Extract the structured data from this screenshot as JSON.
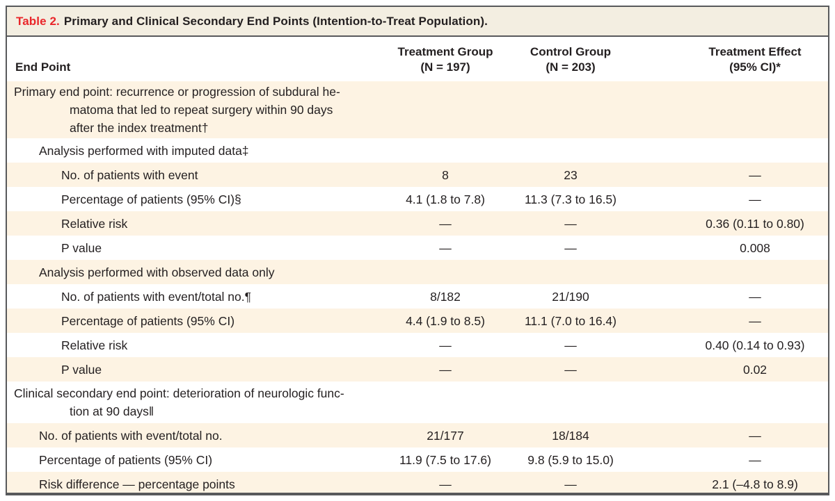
{
  "title": {
    "number": "Table 2.",
    "caption": "Primary and Clinical Secondary End Points (Intention-to-Treat Population)."
  },
  "columns": {
    "endpoint": "End Point",
    "treatment": "Treatment Group\n(N = 197)",
    "control": "Control Group\n(N = 203)",
    "effect": "Treatment Effect\n(95% CI)*"
  },
  "rows": [
    {
      "label": "Primary end point: recurrence or progression of subdural he-\nmatoma that led to repeat surgery within 90 days\nafter the index treatment†",
      "indent": 0,
      "tall": true,
      "treatment": "",
      "control": "",
      "effect": ""
    },
    {
      "label": "Analysis performed with imputed data‡",
      "indent": 1,
      "tall": false,
      "treatment": "",
      "control": "",
      "effect": ""
    },
    {
      "label": "No. of patients with event",
      "indent": 2,
      "tall": false,
      "treatment": "8",
      "control": "23",
      "effect": "—"
    },
    {
      "label": "Percentage of patients (95% CI)§",
      "indent": 2,
      "tall": false,
      "treatment": "4.1 (1.8 to 7.8)",
      "control": "11.3 (7.3 to 16.5)",
      "effect": "—"
    },
    {
      "label": "Relative risk",
      "indent": 2,
      "tall": false,
      "treatment": "—",
      "control": "—",
      "effect": "0.36 (0.11 to 0.80)"
    },
    {
      "label": "P value",
      "indent": 2,
      "tall": false,
      "treatment": "—",
      "control": "—",
      "effect": "0.008"
    },
    {
      "label": "Analysis performed with observed data only",
      "indent": 1,
      "tall": false,
      "treatment": "",
      "control": "",
      "effect": ""
    },
    {
      "label": "No. of patients with event/total no.¶",
      "indent": 2,
      "tall": false,
      "treatment": "8/182",
      "control": "21/190",
      "effect": "—"
    },
    {
      "label": "Percentage of patients (95% CI)",
      "indent": 2,
      "tall": false,
      "treatment": "4.4 (1.9 to 8.5)",
      "control": "11.1 (7.0 to 16.4)",
      "effect": "—"
    },
    {
      "label": "Relative risk",
      "indent": 2,
      "tall": false,
      "treatment": "—",
      "control": "—",
      "effect": "0.40 (0.14 to 0.93)"
    },
    {
      "label": "P value",
      "indent": 2,
      "tall": false,
      "treatment": "—",
      "control": "—",
      "effect": "0.02"
    },
    {
      "label": "Clinical secondary end point: deterioration of neurologic func-\ntion at 90 days‖",
      "indent": 0,
      "tall": true,
      "treatment": "",
      "control": "",
      "effect": ""
    },
    {
      "label": "No. of patients with event/total no.",
      "indent": 1,
      "tall": false,
      "treatment": "21/177",
      "control": "18/184",
      "effect": "—"
    },
    {
      "label": "Percentage of patients (95% CI)",
      "indent": 1,
      "tall": false,
      "treatment": "11.9 (7.5 to 17.6)",
      "control": "9.8 (5.9 to 15.0)",
      "effect": "—"
    },
    {
      "label": "Risk difference — percentage points",
      "indent": 1,
      "tall": false,
      "treatment": "—",
      "control": "—",
      "effect": "2.1 (–4.8 to 8.9)"
    }
  ],
  "colors": {
    "accent_red": "#e9262a",
    "row_cream": "#fdf3e3",
    "title_bg": "#f3eee1",
    "border_gray": "#58595b",
    "text": "#231f20"
  }
}
